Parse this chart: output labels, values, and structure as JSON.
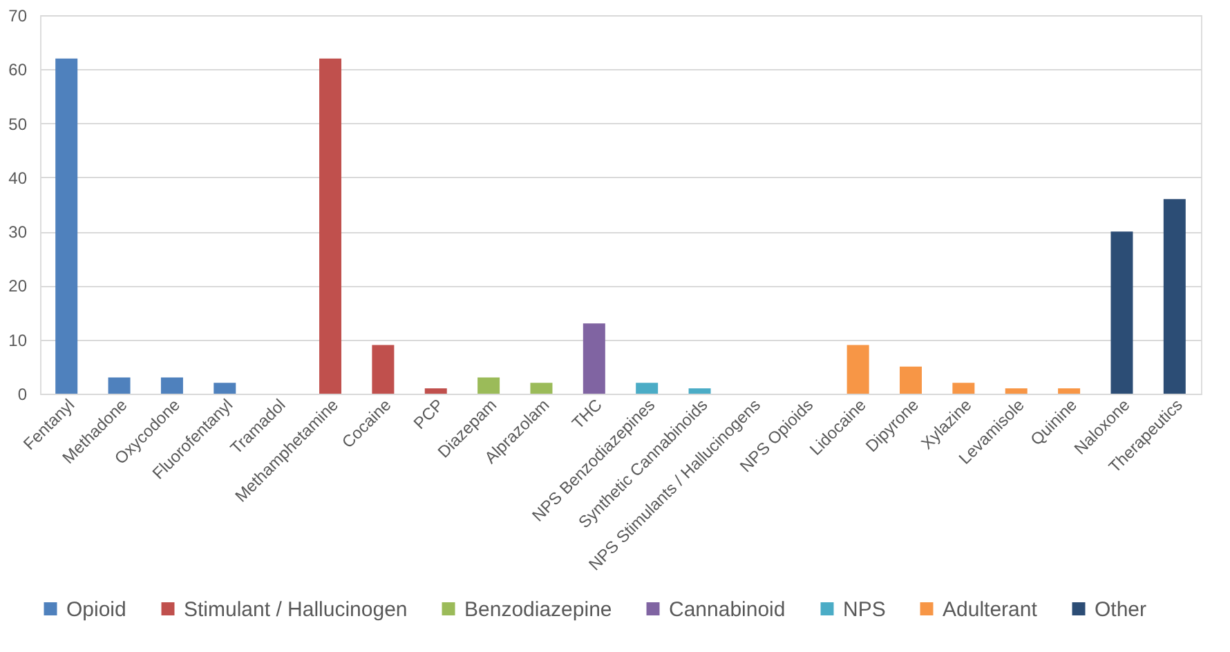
{
  "chart_data": {
    "type": "bar",
    "categories": [
      "Fentanyl",
      "Methadone",
      "Oxycodone",
      "Fluorofentanyl",
      "Tramadol",
      "Methamphetamine",
      "Cocaine",
      "PCP",
      "Diazepam",
      "Alprazolam",
      "THC",
      "NPS Benzodiazepines",
      "Synthetic Cannabinoids",
      "NPS Stimulants / Hallucinogens",
      "NPS Opioids",
      "Lidocaine",
      "Dipyrone",
      "Xylazine",
      "Levamisole",
      "Quinine",
      "Naloxone",
      "Therapeutics"
    ],
    "series": [
      {
        "name": "Opioid",
        "color": "#4f81bd",
        "values": [
          62,
          3,
          3,
          2,
          0,
          null,
          null,
          null,
          null,
          null,
          null,
          null,
          null,
          null,
          null,
          null,
          null,
          null,
          null,
          null,
          null,
          null
        ]
      },
      {
        "name": "Stimulant / Hallucinogen",
        "color": "#c0504d",
        "values": [
          null,
          null,
          null,
          null,
          null,
          62,
          9,
          1,
          null,
          null,
          null,
          null,
          null,
          null,
          null,
          null,
          null,
          null,
          null,
          null,
          null,
          null
        ]
      },
      {
        "name": "Benzodiazepine",
        "color": "#9bbb59",
        "values": [
          null,
          null,
          null,
          null,
          null,
          null,
          null,
          null,
          3,
          2,
          null,
          null,
          null,
          null,
          null,
          null,
          null,
          null,
          null,
          null,
          null,
          null
        ]
      },
      {
        "name": "Cannabinoid",
        "color": "#8064a2",
        "values": [
          null,
          null,
          null,
          null,
          null,
          null,
          null,
          null,
          null,
          null,
          13,
          null,
          null,
          null,
          null,
          null,
          null,
          null,
          null,
          null,
          null,
          null
        ]
      },
      {
        "name": "NPS",
        "color": "#4bacc6",
        "values": [
          null,
          null,
          null,
          null,
          null,
          null,
          null,
          null,
          null,
          null,
          null,
          2,
          1,
          0,
          0,
          null,
          null,
          null,
          null,
          null,
          null,
          null
        ]
      },
      {
        "name": "Adulterant",
        "color": "#f79646",
        "values": [
          null,
          null,
          null,
          null,
          null,
          null,
          null,
          null,
          null,
          null,
          null,
          null,
          null,
          null,
          null,
          9,
          5,
          2,
          1,
          1,
          null,
          null
        ]
      },
      {
        "name": "Other",
        "color": "#2c4d75",
        "values": [
          null,
          null,
          null,
          null,
          null,
          null,
          null,
          null,
          null,
          null,
          null,
          null,
          null,
          null,
          null,
          null,
          null,
          null,
          null,
          null,
          30,
          36
        ]
      }
    ],
    "ylim": [
      0,
      70
    ],
    "yticks": [
      0,
      10,
      20,
      30,
      40,
      50,
      60,
      70
    ],
    "grid": "y",
    "legend": "bottom"
  }
}
